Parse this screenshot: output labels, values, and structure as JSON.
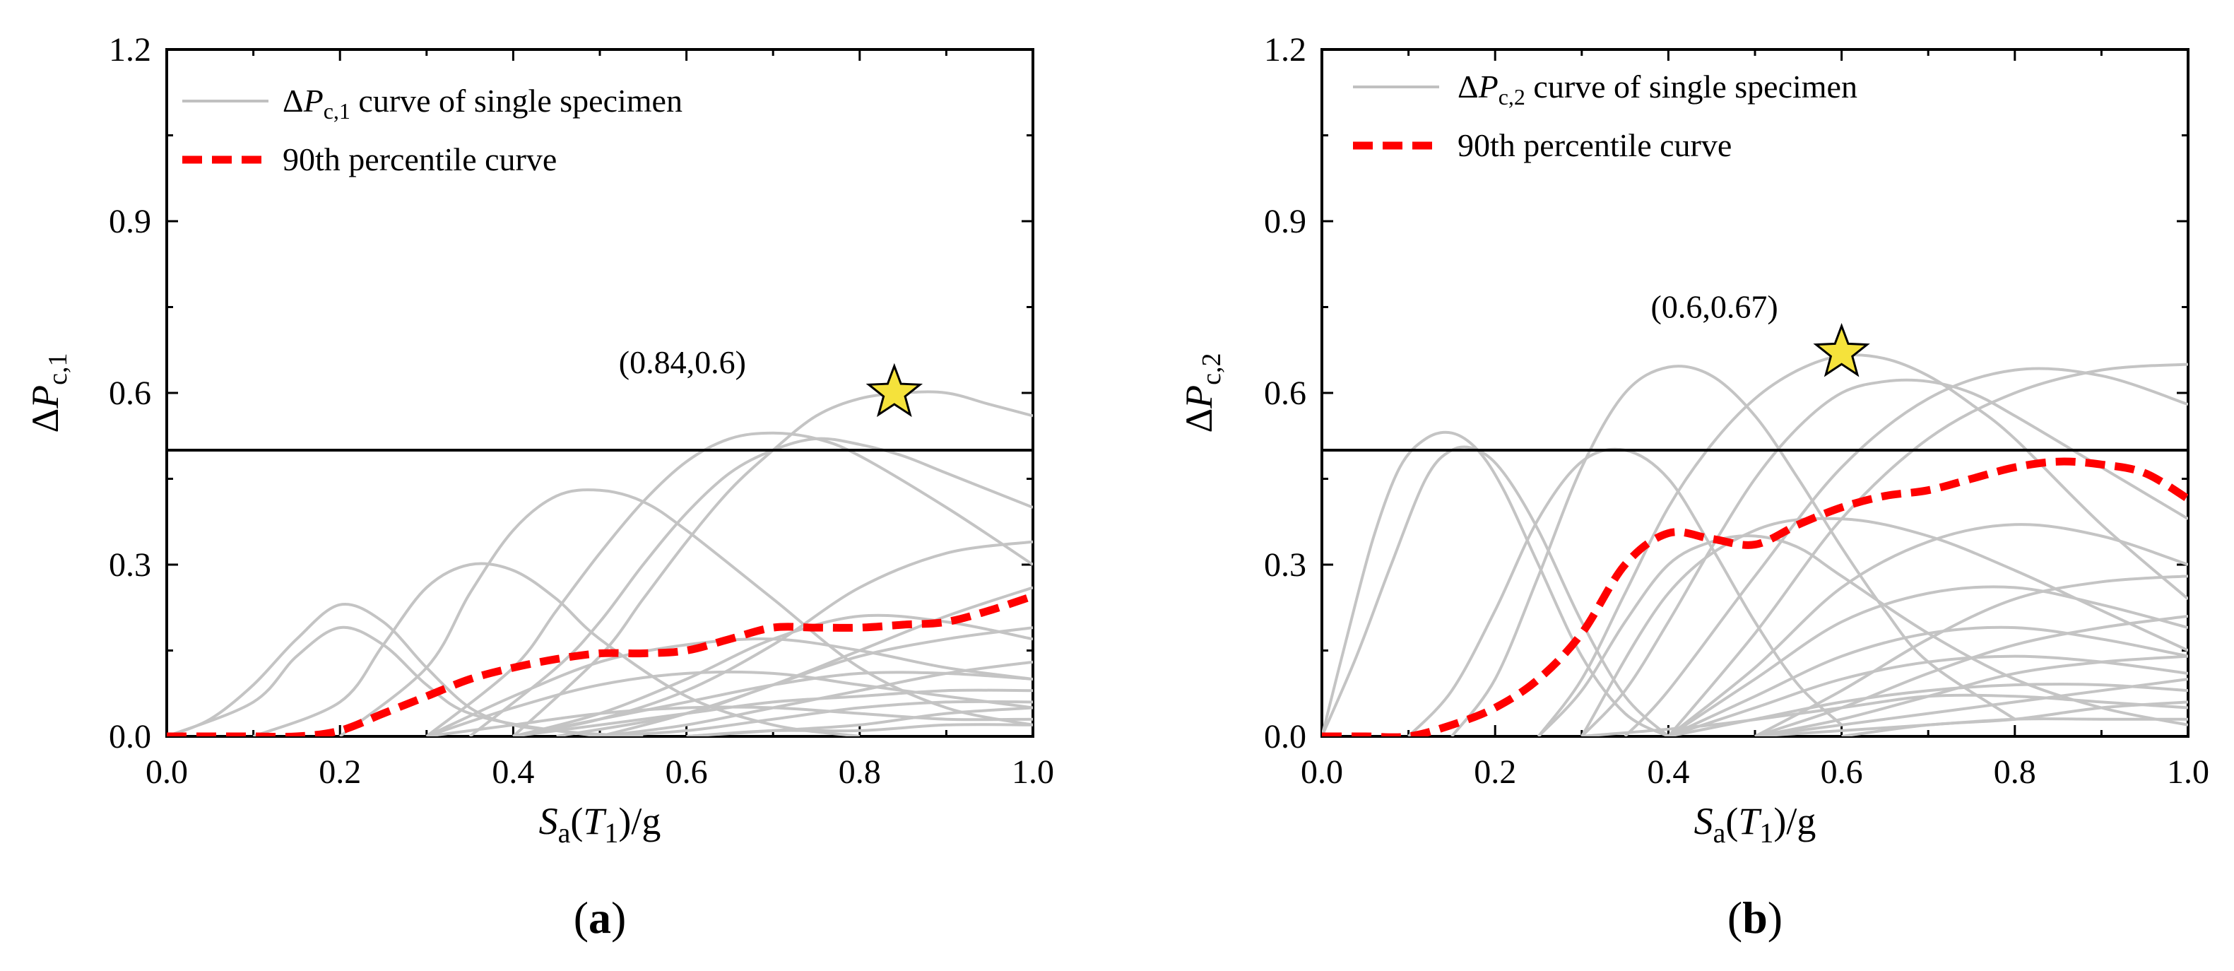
{
  "chart_data": [
    {
      "panel": "(a)",
      "panel_letter": "a",
      "type": "line",
      "xlabel": "Sa(T1)/g",
      "ylabel": "ΔPc,1",
      "ylabel_sub": "c,1",
      "xlim": [
        0.0,
        1.0
      ],
      "ylim": [
        0.0,
        1.2
      ],
      "xticks": [
        "0.0",
        "0.2",
        "0.4",
        "0.6",
        "0.8",
        "1.0"
      ],
      "yticks": [
        "0.0",
        "0.3",
        "0.6",
        "0.9",
        "1.2"
      ],
      "threshold": 0.5,
      "legend": [
        "ΔPc,1 curve of single specimen",
        "90th percentile curve"
      ],
      "legend_sub": "c,1",
      "annotation": {
        "label": "(0.84,0.6)",
        "x": 0.84,
        "y": 0.6
      },
      "percentile_curve": {
        "name": "90th percentile curve",
        "x": [
          0.0,
          0.05,
          0.1,
          0.15,
          0.2,
          0.25,
          0.3,
          0.35,
          0.4,
          0.45,
          0.5,
          0.55,
          0.6,
          0.65,
          0.7,
          0.75,
          0.8,
          0.85,
          0.9,
          0.95,
          1.0
        ],
        "y": [
          0.0,
          0.0,
          0.0,
          0.0,
          0.01,
          0.04,
          0.07,
          0.1,
          0.12,
          0.135,
          0.145,
          0.145,
          0.15,
          0.17,
          0.19,
          0.19,
          0.19,
          0.195,
          0.2,
          0.22,
          0.245
        ]
      },
      "specimen_curves": [
        {
          "name": "s1",
          "x": [
            0.0,
            0.05,
            0.1,
            0.15,
            0.2,
            0.25,
            0.3,
            0.35,
            0.4,
            0.45,
            0.5
          ],
          "y": [
            0.0,
            0.03,
            0.09,
            0.17,
            0.23,
            0.2,
            0.12,
            0.05,
            0.02,
            0.01,
            0.0
          ]
        },
        {
          "name": "s2",
          "x": [
            0.0,
            0.1,
            0.15,
            0.2,
            0.25,
            0.3,
            0.35,
            0.45,
            0.55
          ],
          "y": [
            0.0,
            0.06,
            0.14,
            0.19,
            0.16,
            0.09,
            0.04,
            0.01,
            0.0
          ]
        },
        {
          "name": "s3",
          "x": [
            0.1,
            0.2,
            0.25,
            0.3,
            0.35,
            0.4,
            0.45,
            0.5,
            0.6,
            0.7,
            0.8
          ],
          "y": [
            0.0,
            0.06,
            0.16,
            0.26,
            0.3,
            0.29,
            0.24,
            0.17,
            0.07,
            0.02,
            0.0
          ]
        },
        {
          "name": "s4",
          "x": [
            0.2,
            0.3,
            0.35,
            0.4,
            0.45,
            0.5,
            0.55,
            0.6,
            0.7,
            0.8,
            0.9,
            1.0
          ],
          "y": [
            0.0,
            0.12,
            0.25,
            0.36,
            0.42,
            0.43,
            0.41,
            0.36,
            0.24,
            0.12,
            0.05,
            0.02
          ]
        },
        {
          "name": "s5",
          "x": [
            0.3,
            0.4,
            0.45,
            0.5,
            0.55,
            0.6,
            0.65,
            0.7,
            0.75,
            0.8,
            0.9,
            1.0
          ],
          "y": [
            0.0,
            0.12,
            0.22,
            0.32,
            0.41,
            0.48,
            0.52,
            0.53,
            0.52,
            0.49,
            0.4,
            0.3
          ]
        },
        {
          "name": "s6",
          "x": [
            0.35,
            0.45,
            0.5,
            0.55,
            0.6,
            0.65,
            0.7,
            0.75,
            0.8,
            0.85,
            0.9,
            1.0
          ],
          "y": [
            0.0,
            0.12,
            0.2,
            0.3,
            0.39,
            0.46,
            0.5,
            0.52,
            0.51,
            0.49,
            0.46,
            0.4
          ]
        },
        {
          "name": "s7",
          "x": [
            0.4,
            0.5,
            0.55,
            0.6,
            0.65,
            0.7,
            0.75,
            0.8,
            0.85,
            0.9,
            0.95,
            1.0
          ],
          "y": [
            0.0,
            0.14,
            0.24,
            0.34,
            0.43,
            0.5,
            0.56,
            0.59,
            0.6,
            0.6,
            0.58,
            0.56
          ]
        },
        {
          "name": "s8",
          "x": [
            0.4,
            0.5,
            0.6,
            0.7,
            0.8,
            0.9,
            1.0
          ],
          "y": [
            0.0,
            0.03,
            0.08,
            0.16,
            0.26,
            0.32,
            0.34
          ]
        },
        {
          "name": "s9",
          "x": [
            0.3,
            0.4,
            0.5,
            0.6,
            0.7,
            0.8,
            0.9,
            1.0
          ],
          "y": [
            0.0,
            0.07,
            0.13,
            0.16,
            0.17,
            0.15,
            0.12,
            0.1
          ]
        },
        {
          "name": "s10",
          "x": [
            0.4,
            0.5,
            0.6,
            0.7,
            0.8,
            0.9,
            1.0
          ],
          "y": [
            0.0,
            0.04,
            0.1,
            0.17,
            0.21,
            0.2,
            0.17
          ]
        },
        {
          "name": "s11",
          "x": [
            0.5,
            0.6,
            0.7,
            0.8,
            0.9,
            1.0
          ],
          "y": [
            0.0,
            0.04,
            0.09,
            0.15,
            0.21,
            0.26
          ]
        },
        {
          "name": "s12",
          "x": [
            0.3,
            0.4,
            0.5,
            0.6,
            0.7,
            0.8,
            0.9,
            1.0
          ],
          "y": [
            0.0,
            0.05,
            0.09,
            0.11,
            0.11,
            0.09,
            0.07,
            0.05
          ]
        },
        {
          "name": "s13",
          "x": [
            0.4,
            0.5,
            0.6,
            0.7,
            0.8,
            0.9,
            1.0
          ],
          "y": [
            0.0,
            0.03,
            0.06,
            0.09,
            0.11,
            0.11,
            0.1
          ]
        },
        {
          "name": "s14",
          "x": [
            0.5,
            0.6,
            0.7,
            0.8,
            0.9,
            1.0
          ],
          "y": [
            0.0,
            0.02,
            0.05,
            0.08,
            0.11,
            0.13
          ]
        },
        {
          "name": "s15",
          "x": [
            0.4,
            0.5,
            0.6,
            0.7,
            0.8,
            0.9,
            1.0
          ],
          "y": [
            0.0,
            0.02,
            0.04,
            0.06,
            0.07,
            0.08,
            0.08
          ]
        },
        {
          "name": "s16",
          "x": [
            0.5,
            0.6,
            0.7,
            0.8,
            0.9,
            1.0
          ],
          "y": [
            0.0,
            0.01,
            0.03,
            0.05,
            0.06,
            0.06
          ]
        },
        {
          "name": "s17",
          "x": [
            0.3,
            0.4,
            0.5,
            0.6,
            0.7,
            0.8,
            0.9,
            1.0
          ],
          "y": [
            0.0,
            0.02,
            0.04,
            0.05,
            0.05,
            0.04,
            0.03,
            0.03
          ]
        },
        {
          "name": "s18",
          "x": [
            0.6,
            0.7,
            0.8,
            0.9,
            1.0
          ],
          "y": [
            0.0,
            0.01,
            0.02,
            0.04,
            0.05
          ]
        },
        {
          "name": "s19",
          "x": [
            0.45,
            0.6,
            0.7,
            0.8,
            0.9,
            1.0
          ],
          "y": [
            0.0,
            0.04,
            0.09,
            0.14,
            0.17,
            0.19
          ]
        },
        {
          "name": "s20",
          "x": [
            0.6,
            0.7,
            0.8,
            0.9,
            1.0
          ],
          "y": [
            0.0,
            0.01,
            0.01,
            0.02,
            0.02
          ]
        }
      ]
    },
    {
      "panel": "(b)",
      "panel_letter": "b",
      "type": "line",
      "xlabel": "Sa(T1)/g",
      "ylabel": "ΔPc,2",
      "ylabel_sub": "c,2",
      "xlim": [
        0.0,
        1.0
      ],
      "ylim": [
        0.0,
        1.2
      ],
      "xticks": [
        "0.0",
        "0.2",
        "0.4",
        "0.6",
        "0.8",
        "1.0"
      ],
      "yticks": [
        "0.0",
        "0.3",
        "0.6",
        "0.9",
        "1.2"
      ],
      "threshold": 0.5,
      "legend": [
        "ΔPc,2 curve of single specimen",
        "90th percentile curve"
      ],
      "legend_sub": "c,2",
      "annotation": {
        "label": "(0.6,0.67)",
        "x": 0.6,
        "y": 0.67
      },
      "percentile_curve": {
        "name": "90th percentile curve",
        "x": [
          0.0,
          0.05,
          0.1,
          0.15,
          0.2,
          0.25,
          0.3,
          0.35,
          0.4,
          0.45,
          0.5,
          0.55,
          0.6,
          0.65,
          0.7,
          0.75,
          0.8,
          0.85,
          0.9,
          0.95,
          1.0
        ],
        "y": [
          0.0,
          0.0,
          0.0,
          0.02,
          0.05,
          0.1,
          0.18,
          0.3,
          0.355,
          0.345,
          0.335,
          0.37,
          0.4,
          0.42,
          0.43,
          0.45,
          0.47,
          0.48,
          0.475,
          0.46,
          0.415
        ]
      },
      "specimen_curves": [
        {
          "name": "s1",
          "x": [
            0.0,
            0.03,
            0.06,
            0.09,
            0.12,
            0.15,
            0.18,
            0.21,
            0.25,
            0.3,
            0.35,
            0.4
          ],
          "y": [
            0.0,
            0.18,
            0.35,
            0.47,
            0.52,
            0.53,
            0.5,
            0.43,
            0.3,
            0.14,
            0.04,
            0.0
          ]
        },
        {
          "name": "s2",
          "x": [
            0.0,
            0.04,
            0.08,
            0.12,
            0.15,
            0.18,
            0.21,
            0.25,
            0.3,
            0.35,
            0.4
          ],
          "y": [
            0.0,
            0.14,
            0.3,
            0.45,
            0.5,
            0.5,
            0.46,
            0.36,
            0.2,
            0.07,
            0.0
          ]
        },
        {
          "name": "s3",
          "x": [
            0.1,
            0.15,
            0.2,
            0.25,
            0.3,
            0.35,
            0.4,
            0.45,
            0.5,
            0.55,
            0.6
          ],
          "y": [
            0.0,
            0.08,
            0.22,
            0.38,
            0.48,
            0.5,
            0.45,
            0.33,
            0.2,
            0.09,
            0.02
          ]
        },
        {
          "name": "s4",
          "x": [
            0.15,
            0.2,
            0.25,
            0.3,
            0.35,
            0.4,
            0.45,
            0.5,
            0.55,
            0.6,
            0.65,
            0.7,
            0.8
          ],
          "y": [
            0.0,
            0.1,
            0.28,
            0.47,
            0.6,
            0.645,
            0.63,
            0.56,
            0.45,
            0.33,
            0.22,
            0.13,
            0.03
          ]
        },
        {
          "name": "s5",
          "x": [
            0.25,
            0.3,
            0.35,
            0.4,
            0.45,
            0.5,
            0.55,
            0.6,
            0.65,
            0.7,
            0.75,
            0.8,
            0.9,
            1.0
          ],
          "y": [
            0.0,
            0.1,
            0.25,
            0.4,
            0.51,
            0.59,
            0.64,
            0.665,
            0.66,
            0.63,
            0.58,
            0.52,
            0.37,
            0.24
          ]
        },
        {
          "name": "s6",
          "x": [
            0.3,
            0.35,
            0.4,
            0.45,
            0.5,
            0.55,
            0.6,
            0.65,
            0.7,
            0.75,
            0.8,
            0.9,
            1.0
          ],
          "y": [
            0.0,
            0.08,
            0.2,
            0.33,
            0.45,
            0.54,
            0.6,
            0.62,
            0.62,
            0.6,
            0.56,
            0.47,
            0.38
          ]
        },
        {
          "name": "s7",
          "x": [
            0.35,
            0.4,
            0.5,
            0.6,
            0.7,
            0.8,
            0.9,
            1.0
          ],
          "y": [
            0.0,
            0.08,
            0.28,
            0.47,
            0.59,
            0.64,
            0.63,
            0.58
          ]
        },
        {
          "name": "s8",
          "x": [
            0.4,
            0.5,
            0.6,
            0.7,
            0.8,
            0.9,
            1.0
          ],
          "y": [
            0.0,
            0.18,
            0.38,
            0.52,
            0.6,
            0.64,
            0.65
          ]
        },
        {
          "name": "s9",
          "x": [
            0.25,
            0.3,
            0.35,
            0.4,
            0.45,
            0.5,
            0.55,
            0.6,
            0.7,
            0.8,
            0.9,
            1.0
          ],
          "y": [
            0.0,
            0.08,
            0.2,
            0.3,
            0.34,
            0.35,
            0.33,
            0.28,
            0.18,
            0.1,
            0.05,
            0.02
          ]
        },
        {
          "name": "s10",
          "x": [
            0.3,
            0.4,
            0.5,
            0.6,
            0.7,
            0.8,
            0.9,
            1.0
          ],
          "y": [
            0.0,
            0.25,
            0.36,
            0.38,
            0.35,
            0.29,
            0.22,
            0.15
          ]
        },
        {
          "name": "s11",
          "x": [
            0.4,
            0.5,
            0.6,
            0.7,
            0.8,
            0.9,
            1.0
          ],
          "y": [
            0.0,
            0.12,
            0.26,
            0.34,
            0.37,
            0.35,
            0.3
          ]
        },
        {
          "name": "s12",
          "x": [
            0.4,
            0.5,
            0.6,
            0.7,
            0.8,
            0.9,
            1.0
          ],
          "y": [
            0.0,
            0.1,
            0.2,
            0.25,
            0.26,
            0.23,
            0.19
          ]
        },
        {
          "name": "s13",
          "x": [
            0.5,
            0.6,
            0.7,
            0.8,
            0.9,
            1.0
          ],
          "y": [
            0.0,
            0.08,
            0.17,
            0.24,
            0.27,
            0.28
          ]
        },
        {
          "name": "s14",
          "x": [
            0.4,
            0.5,
            0.6,
            0.7,
            0.8,
            0.9,
            1.0
          ],
          "y": [
            0.0,
            0.07,
            0.14,
            0.18,
            0.19,
            0.17,
            0.14
          ]
        },
        {
          "name": "s15",
          "x": [
            0.5,
            0.6,
            0.7,
            0.8,
            0.9,
            1.0
          ],
          "y": [
            0.0,
            0.05,
            0.11,
            0.16,
            0.19,
            0.21
          ]
        },
        {
          "name": "s16",
          "x": [
            0.4,
            0.5,
            0.6,
            0.7,
            0.8,
            0.9,
            1.0
          ],
          "y": [
            0.0,
            0.05,
            0.1,
            0.13,
            0.14,
            0.13,
            0.11
          ]
        },
        {
          "name": "s17",
          "x": [
            0.5,
            0.6,
            0.7,
            0.8,
            0.9,
            1.0
          ],
          "y": [
            0.0,
            0.03,
            0.07,
            0.11,
            0.13,
            0.14
          ]
        },
        {
          "name": "s18",
          "x": [
            0.4,
            0.5,
            0.6,
            0.7,
            0.8,
            0.9,
            1.0
          ],
          "y": [
            0.0,
            0.03,
            0.06,
            0.08,
            0.09,
            0.09,
            0.08
          ]
        },
        {
          "name": "s19",
          "x": [
            0.5,
            0.6,
            0.7,
            0.8,
            0.9,
            1.0
          ],
          "y": [
            0.0,
            0.02,
            0.04,
            0.06,
            0.08,
            0.1
          ]
        },
        {
          "name": "s20",
          "x": [
            0.3,
            0.45,
            0.6,
            0.7,
            0.8,
            0.9,
            1.0
          ],
          "y": [
            0.0,
            0.02,
            0.05,
            0.07,
            0.07,
            0.06,
            0.05
          ]
        },
        {
          "name": "s21",
          "x": [
            0.6,
            0.7,
            0.8,
            0.9,
            1.0
          ],
          "y": [
            0.0,
            0.02,
            0.03,
            0.05,
            0.06
          ]
        },
        {
          "name": "s22",
          "x": [
            0.5,
            0.6,
            0.7,
            0.8,
            0.9,
            1.0
          ],
          "y": [
            0.0,
            0.01,
            0.02,
            0.03,
            0.03,
            0.03
          ]
        }
      ]
    }
  ]
}
